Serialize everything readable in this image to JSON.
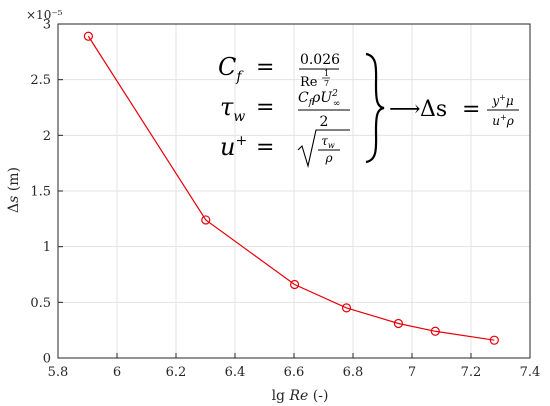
{
  "chart_data": {
    "type": "line",
    "title": "",
    "xlabel": "lg Re (-)",
    "xlabel_parts": {
      "prefix": "lg ",
      "var": "Re",
      "suffix": " (-)"
    },
    "ylabel": "Δs (m)",
    "ylabel_parts": {
      "symbol": "Δ",
      "var": "s",
      "suffix": " (m)"
    },
    "y_exponent_label": "×10⁻⁵",
    "y_exponent": -5,
    "xlim": [
      5.8,
      7.4
    ],
    "ylim": [
      0,
      3
    ],
    "xticks": [
      "5.8",
      "6",
      "6.2",
      "6.4",
      "6.6",
      "6.8",
      "7",
      "7.2",
      "7.4"
    ],
    "yticks": [
      "0",
      "0.5",
      "1",
      "1.5",
      "2",
      "2.5",
      "3"
    ],
    "grid": true,
    "series": [
      {
        "color": "#e8000b",
        "marker": "circle",
        "x": [
          5.903,
          6.301,
          6.602,
          6.778,
          6.954,
          7.079,
          7.279
        ],
        "y": [
          2.89,
          1.24,
          0.66,
          0.45,
          0.31,
          0.24,
          0.16
        ]
      }
    ],
    "annotation": {
      "rows": [
        {
          "lhs": "C",
          "lhs_sub": "f",
          "rhs_num": "0.026",
          "rhs_den": "Re",
          "rhs_den_exp_num": "1",
          "rhs_den_exp_den": "7"
        },
        {
          "lhs": "τ",
          "lhs_sub": "w",
          "rhs_num": "C",
          "rhs_num_sub": "f",
          "rhs_num_mid": "ρU",
          "rhs_num_sup": "2",
          "rhs_num_sub2": "∞",
          "rhs_den": "2"
        },
        {
          "lhs": "u",
          "lhs_sup": "+",
          "rad_num": "τ",
          "rad_num_sub": "w",
          "rad_den": "ρ"
        }
      ],
      "equals": "=",
      "arrow": "⟶",
      "result_lhs": "Δs",
      "result_eq": "=",
      "result_num": "y",
      "result_num_sup": "+",
      "result_num_tail": "μ",
      "result_den": "u",
      "result_den_sup": "+",
      "result_den_tail": "ρ"
    }
  }
}
